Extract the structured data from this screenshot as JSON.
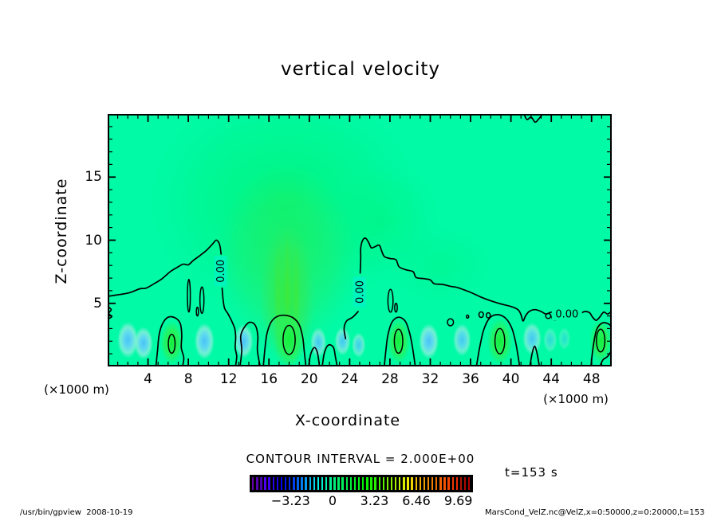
{
  "title": "vertical velocity",
  "axes": {
    "x": {
      "label": "X-coordinate",
      "unit": "(×1000 m)",
      "min": 0,
      "max": 50,
      "major_ticks": [
        4,
        8,
        12,
        16,
        20,
        24,
        28,
        32,
        36,
        40,
        44,
        48
      ],
      "minor_step": 1
    },
    "z": {
      "label": "Z-coordinate",
      "unit": "(×1000 m)",
      "min": 0,
      "max": 20,
      "major_ticks": [
        5,
        10,
        15
      ],
      "minor_step": 1
    }
  },
  "contour_note": "CONTOUR INTERVAL = 2.000E+00",
  "time_label": "t=153 s",
  "footer_left": "/usr/bin/gpview  2008-10-19",
  "footer_right": "MarsCond_VelZ.nc@VelZ,x=0:50000,z=0:20000,t=153",
  "colorbar": {
    "ticks": [
      -3.23,
      0,
      3.23,
      6.46,
      9.69
    ],
    "tick_labels": [
      "−3.23",
      "0",
      "3.23",
      "6.46",
      "9.69"
    ],
    "vmin": -6.2,
    "vmax": 10.45,
    "stripe_count": 54,
    "hue_anchors": [
      [
        0,
        275
      ],
      [
        0.178,
        228
      ],
      [
        0.372,
        152
      ],
      [
        0.566,
        110
      ],
      [
        0.76,
        45
      ],
      [
        0.954,
        8
      ],
      [
        1,
        0
      ]
    ]
  },
  "chart_data": {
    "type": "filled-contour",
    "field": "vertical velocity",
    "x_range_m": [
      0,
      50000
    ],
    "z_range_m": [
      0,
      20000
    ],
    "contour_interval": 2.0,
    "value_range_colorbar": [
      -6.2,
      10.45
    ],
    "zero_contour_label": "0.00",
    "colors": {
      "background": "#00faa6",
      "updraft_glow": "#00f57d",
      "updraft_core": "#35e93e",
      "downdraft_core": "#49c2f8",
      "downdraft_halo": "#8ceedd",
      "surface_green": "#12f03c",
      "contour_line": "#000000"
    },
    "glows": [
      [
        17.5,
        13,
        14,
        9.5,
        "gGlow",
        1
      ],
      [
        27,
        11.5,
        6.5,
        5,
        "gGlow",
        0.55
      ],
      [
        33,
        8,
        5.5,
        3.2,
        "gGlow",
        0.4
      ],
      [
        17.8,
        8.5,
        7,
        7.5,
        "gCore",
        0.55
      ],
      [
        17.8,
        5.5,
        2.8,
        5.8,
        "gCore",
        0.95
      ],
      [
        16.9,
        5.5,
        0.4,
        4.6,
        "gStreak",
        0.7
      ],
      [
        17.8,
        6,
        0.4,
        5,
        "gStreak",
        0.8
      ],
      [
        18.7,
        5.5,
        0.4,
        4.6,
        "gStreak",
        0.7
      ]
    ],
    "blue_blobs": [
      [
        2.0,
        2.1,
        1.05,
        1.45,
        1
      ],
      [
        3.55,
        1.85,
        0.95,
        1.3,
        1
      ],
      [
        9.6,
        2.0,
        1.0,
        1.45,
        1
      ],
      [
        13.5,
        2.0,
        0.95,
        1.35,
        1
      ],
      [
        20.9,
        1.9,
        0.8,
        1.2,
        0.9
      ],
      [
        23.3,
        2.0,
        0.8,
        1.15,
        0.9
      ],
      [
        24.9,
        1.7,
        0.7,
        1.0,
        0.8
      ],
      [
        31.85,
        2.0,
        1.0,
        1.4,
        1
      ],
      [
        35.15,
        2.1,
        0.9,
        1.3,
        0.9
      ],
      [
        42.1,
        2.2,
        0.95,
        1.3,
        0.9
      ],
      [
        43.9,
        2.1,
        0.7,
        1.0,
        0.55
      ],
      [
        45.3,
        2.2,
        0.6,
        0.9,
        0.45
      ]
    ],
    "green_blobs": [
      [
        6.35,
        1.9,
        1.15,
        1.75
      ],
      [
        18.0,
        2.2,
        1.5,
        2.3
      ],
      [
        28.85,
        2.0,
        1.15,
        1.8
      ],
      [
        38.9,
        2.0,
        1.25,
        1.85
      ],
      [
        48.9,
        2.0,
        1.1,
        1.7
      ]
    ],
    "zero_paths": [
      [
        [
          0,
          5.55
        ],
        [
          1.2,
          5.7
        ],
        [
          2.2,
          5.85
        ],
        [
          3.2,
          6.15
        ],
        [
          3.8,
          6.2
        ],
        [
          4.6,
          6.55
        ],
        [
          5.4,
          6.95
        ],
        [
          6.2,
          7.5
        ],
        [
          6.9,
          7.85
        ],
        [
          7.5,
          8.1
        ],
        [
          8.0,
          8.05
        ],
        [
          8.5,
          8.4
        ],
        [
          9.1,
          8.75
        ],
        [
          9.8,
          9.2
        ],
        [
          10.4,
          9.7
        ],
        [
          10.75,
          10.0
        ],
        [
          11.0,
          9.85
        ],
        [
          11.15,
          9.5
        ],
        [
          11.25,
          8.9
        ]
      ],
      [
        [
          11.35,
          6.2
        ],
        [
          11.45,
          5.3
        ],
        [
          11.6,
          4.6
        ],
        [
          11.95,
          4.15
        ],
        [
          12.3,
          3.6
        ],
        [
          12.6,
          3.0
        ],
        [
          12.7,
          2.3
        ],
        [
          12.65,
          1.5
        ],
        [
          12.8,
          0.8
        ],
        [
          12.7,
          0.1
        ]
      ],
      [
        [
          13.15,
          0.1
        ],
        [
          13.3,
          1.3
        ],
        [
          13.2,
          2.4
        ],
        [
          13.55,
          3.1
        ],
        [
          14.1,
          3.5
        ],
        [
          14.65,
          3.25
        ],
        [
          14.9,
          2.4
        ],
        [
          14.85,
          1.3
        ],
        [
          15.1,
          0.1
        ]
      ],
      [
        [
          15.45,
          0.1
        ],
        [
          15.6,
          1.4
        ],
        [
          15.8,
          2.6
        ],
        [
          16.2,
          3.5
        ],
        [
          16.8,
          3.95
        ],
        [
          17.6,
          4.05
        ],
        [
          18.4,
          3.85
        ],
        [
          19.0,
          3.3
        ],
        [
          19.35,
          2.3
        ],
        [
          19.5,
          1.2
        ],
        [
          19.65,
          0.1
        ]
      ],
      [
        [
          19.95,
          0.1
        ],
        [
          20.15,
          1.0
        ],
        [
          20.5,
          1.5
        ],
        [
          20.8,
          1.1
        ],
        [
          21.0,
          0.1
        ]
      ],
      [
        [
          21.3,
          0.1
        ],
        [
          21.5,
          1.1
        ],
        [
          21.9,
          1.7
        ],
        [
          22.4,
          1.5
        ],
        [
          22.6,
          0.7
        ],
        [
          22.75,
          0.1
        ]
      ],
      [
        [
          23.6,
          2.2
        ],
        [
          23.45,
          3.0
        ],
        [
          23.7,
          3.6
        ],
        [
          24.3,
          3.9
        ],
        [
          24.85,
          4.35
        ]
      ],
      [
        [
          25.05,
          7.4
        ],
        [
          25.1,
          8.6
        ],
        [
          25.1,
          9.4
        ],
        [
          25.3,
          10.0
        ],
        [
          25.6,
          10.15
        ],
        [
          25.9,
          9.8
        ],
        [
          26.15,
          9.4
        ],
        [
          26.55,
          9.5
        ],
        [
          26.95,
          9.6
        ],
        [
          27.2,
          9.1
        ],
        [
          27.45,
          8.7
        ],
        [
          28.0,
          8.55
        ],
        [
          28.6,
          8.45
        ],
        [
          28.9,
          7.9
        ],
        [
          29.6,
          7.65
        ],
        [
          30.3,
          7.5
        ],
        [
          30.6,
          7.05
        ],
        [
          31.4,
          6.95
        ],
        [
          32.0,
          6.85
        ],
        [
          32.4,
          6.55
        ],
        [
          33.2,
          6.5
        ],
        [
          34.0,
          6.35
        ],
        [
          34.7,
          6.25
        ],
        [
          35.4,
          6.05
        ],
        [
          36.2,
          5.8
        ],
        [
          37.0,
          5.5
        ],
        [
          38.0,
          5.2
        ],
        [
          39.0,
          4.95
        ],
        [
          40.0,
          4.75
        ],
        [
          40.7,
          4.5
        ],
        [
          41.0,
          4.1
        ],
        [
          41.2,
          3.6
        ],
        [
          41.45,
          4.0
        ],
        [
          41.8,
          4.35
        ],
        [
          42.4,
          4.5
        ],
        [
          43.0,
          4.35
        ],
        [
          43.5,
          4.15
        ],
        [
          44.0,
          4.3
        ],
        [
          44.3,
          4.15
        ]
      ],
      [
        [
          46.85,
          4.15
        ],
        [
          47.3,
          4.35
        ],
        [
          47.8,
          4.25
        ],
        [
          48.1,
          3.9
        ],
        [
          48.45,
          3.65
        ],
        [
          48.8,
          3.9
        ],
        [
          49.2,
          4.3
        ],
        [
          49.6,
          4.15
        ],
        [
          50,
          4.4
        ]
      ],
      [
        [
          4.8,
          0.1
        ],
        [
          4.95,
          1.3
        ],
        [
          5.1,
          2.5
        ],
        [
          5.45,
          3.4
        ],
        [
          6.0,
          3.9
        ],
        [
          6.7,
          3.85
        ],
        [
          7.2,
          3.4
        ],
        [
          7.35,
          2.5
        ],
        [
          7.3,
          1.5
        ],
        [
          7.55,
          0.7
        ],
        [
          7.45,
          0.1
        ]
      ],
      [
        [
          27.45,
          0.1
        ],
        [
          27.6,
          1.3
        ],
        [
          27.8,
          2.5
        ],
        [
          28.2,
          3.5
        ],
        [
          28.85,
          3.9
        ],
        [
          29.5,
          3.6
        ],
        [
          29.9,
          2.8
        ],
        [
          30.2,
          1.7
        ],
        [
          30.5,
          0.1
        ]
      ],
      [
        [
          36.6,
          0.1
        ],
        [
          36.9,
          1.5
        ],
        [
          37.3,
          2.9
        ],
        [
          37.9,
          3.85
        ],
        [
          38.7,
          4.1
        ],
        [
          39.5,
          3.8
        ],
        [
          40.1,
          3.0
        ],
        [
          40.5,
          1.8
        ],
        [
          40.85,
          0.1
        ]
      ],
      [
        [
          47.95,
          0.1
        ],
        [
          48.15,
          1.5
        ],
        [
          48.5,
          2.9
        ],
        [
          49.1,
          3.45
        ],
        [
          49.8,
          3.3
        ],
        [
          50,
          2.9
        ]
      ],
      [
        [
          41.9,
          0.1
        ],
        [
          42.1,
          1.0
        ],
        [
          42.35,
          1.6
        ],
        [
          42.6,
          1.0
        ],
        [
          42.8,
          0.1
        ]
      ],
      [
        [
          0,
          4.75
        ],
        [
          0.35,
          4.5
        ],
        [
          0.1,
          4.2
        ],
        [
          0.4,
          3.95
        ],
        [
          0,
          3.75
        ]
      ],
      [
        [
          41.3,
          20
        ],
        [
          41.6,
          19.55
        ],
        [
          42.0,
          19.75
        ],
        [
          42.4,
          19.35
        ],
        [
          42.75,
          19.6
        ],
        [
          43.05,
          19.9
        ]
      ],
      [
        [
          50,
          1.3
        ],
        [
          49.6,
          0.8
        ],
        [
          49.15,
          0.55
        ],
        [
          48.9,
          0.15
        ]
      ]
    ],
    "closed_contours": [
      [
        6.35,
        1.8,
        0.33,
        0.75
      ],
      [
        18.0,
        2.1,
        0.6,
        1.15
      ],
      [
        28.85,
        2.0,
        0.42,
        0.95
      ],
      [
        38.9,
        2.0,
        0.48,
        1.0
      ],
      [
        48.9,
        2.05,
        0.42,
        0.9
      ],
      [
        8.05,
        5.6,
        0.14,
        1.3
      ],
      [
        9.35,
        5.25,
        0.2,
        1.05
      ],
      [
        8.9,
        4.35,
        0.1,
        0.35
      ],
      [
        28.05,
        5.2,
        0.25,
        0.9
      ],
      [
        28.6,
        4.65,
        0.13,
        0.35
      ],
      [
        34.0,
        3.5,
        0.3,
        0.28
      ],
      [
        35.7,
        3.95,
        0.12,
        0.12
      ],
      [
        37.05,
        4.1,
        0.22,
        0.22
      ],
      [
        37.75,
        4.05,
        0.2,
        0.2
      ],
      [
        43.7,
        4.0,
        0.25,
        0.2
      ],
      [
        44.35,
        3.9,
        0.3,
        0.22
      ]
    ],
    "contour_labels": [
      {
        "text": "0.00",
        "x": 11.2,
        "z": 7.55,
        "rot": -90,
        "bg": "#00f5bb"
      },
      {
        "text": "0.00",
        "x": 25.0,
        "z": 5.9,
        "rot": -90,
        "bg": "#00f4c0"
      },
      {
        "text": "0.00",
        "x": 45.55,
        "z": 4.15,
        "rot": 0,
        "bg": "#00faa6"
      }
    ]
  }
}
